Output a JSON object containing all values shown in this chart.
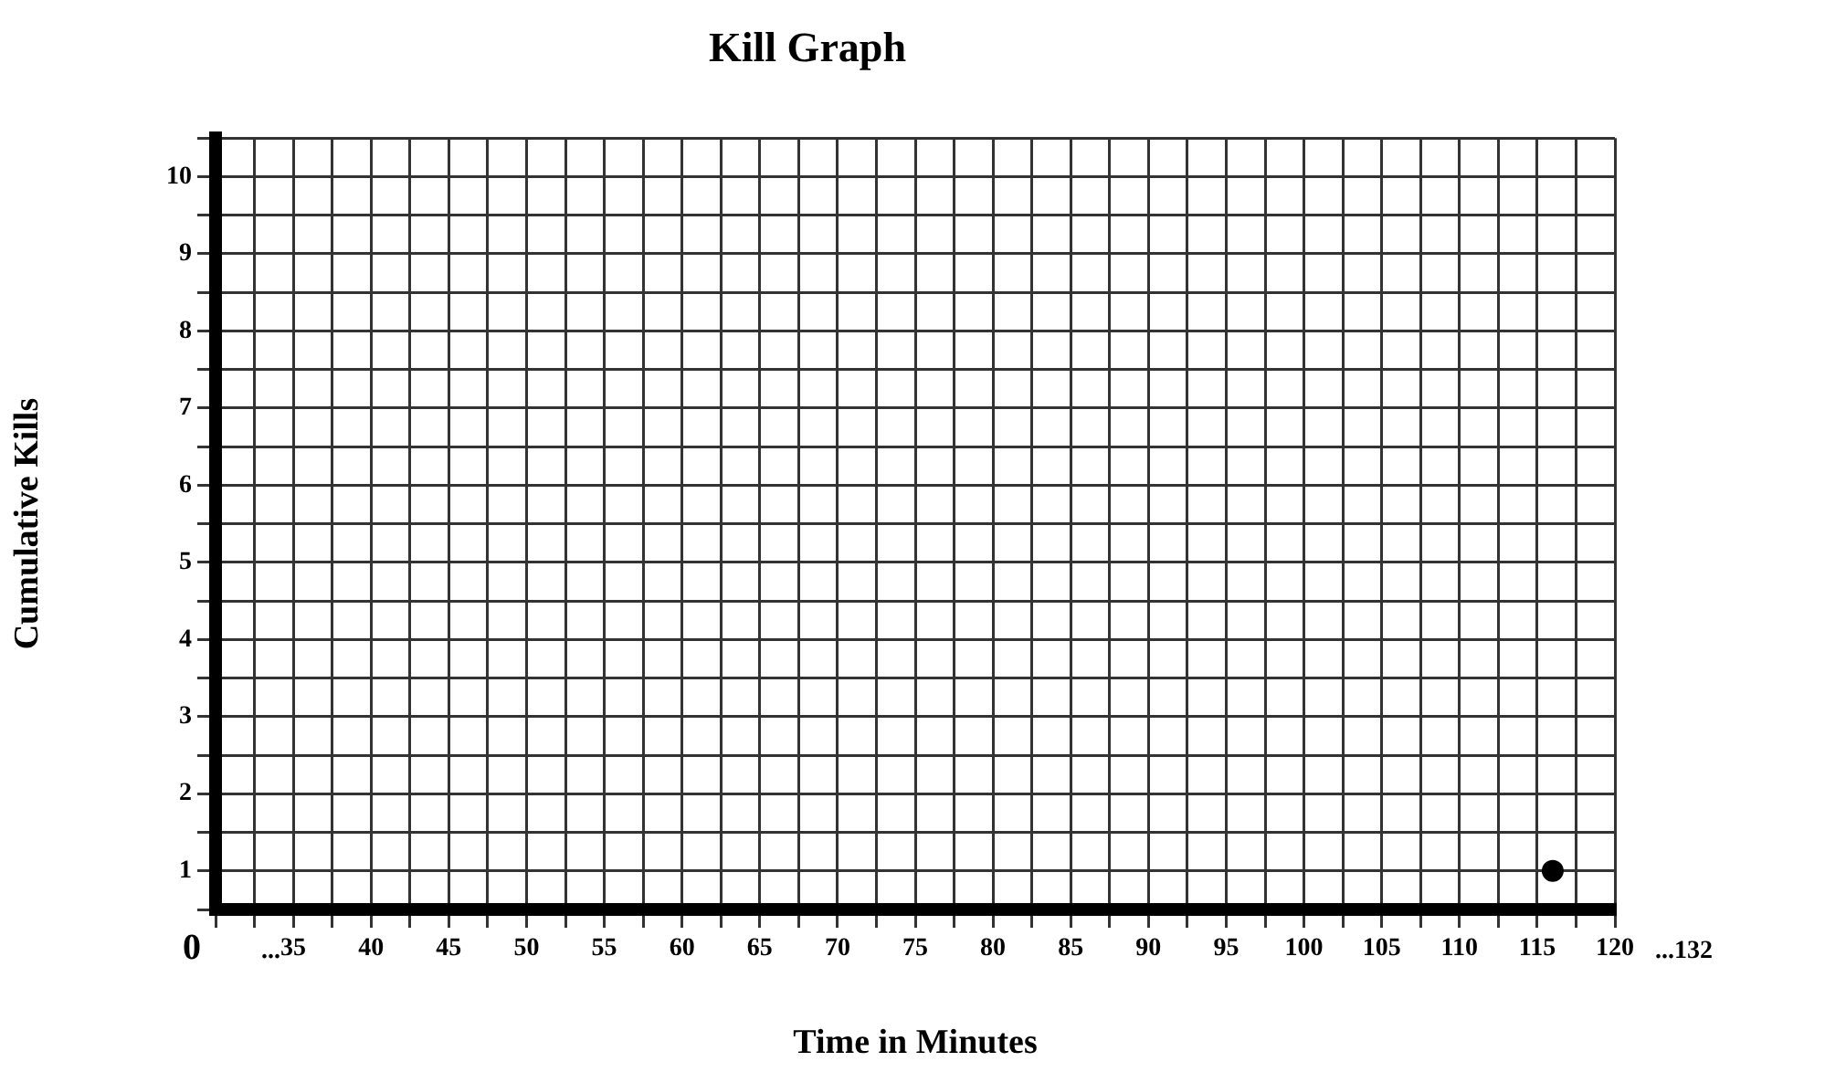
{
  "chart_data": {
    "type": "scatter",
    "title": "Kill Graph",
    "xlabel": "Time in Minutes",
    "ylabel": "Cumulative Kills",
    "x": [
      116
    ],
    "values": [
      1
    ],
    "color": "#000000",
    "marker": "circle",
    "xlim": [
      30,
      120
    ],
    "xticks": [
      {
        "value": 30,
        "label": null
      },
      {
        "value": 32.5,
        "label": null
      },
      35,
      {
        "value": 37.5,
        "label": null
      },
      40,
      {
        "value": 42.5,
        "label": null
      },
      45,
      {
        "value": 47.5,
        "label": null
      },
      50,
      {
        "value": 52.5,
        "label": null
      },
      55,
      {
        "value": 57.5,
        "label": null
      },
      60,
      {
        "value": 62.5,
        "label": null
      },
      65,
      {
        "value": 67.5,
        "label": null
      },
      70,
      {
        "value": 72.5,
        "label": null
      },
      75,
      {
        "value": 77.5,
        "label": null
      },
      80,
      {
        "value": 82.5,
        "label": null
      },
      85,
      {
        "value": 87.5,
        "label": null
      },
      90,
      {
        "value": 92.5,
        "label": null
      },
      95,
      {
        "value": 97.5,
        "label": null
      },
      100,
      {
        "value": 102.5,
        "label": null
      },
      105,
      {
        "value": 107.5,
        "label": null
      },
      110,
      {
        "value": 112.5,
        "label": null
      },
      115,
      {
        "value": 117.5,
        "label": null
      },
      120
    ],
    "ylim": [
      0.5,
      10.5
    ],
    "yticks": [
      {
        "value": 0.5,
        "label": null
      },
      1,
      {
        "value": 1.5,
        "label": null
      },
      2,
      {
        "value": 2.5,
        "label": null
      },
      3,
      {
        "value": 3.5,
        "label": null
      },
      4,
      {
        "value": 4.5,
        "label": null
      },
      5,
      {
        "value": 5.5,
        "label": null
      },
      6,
      {
        "value": 6.5,
        "label": null
      },
      7,
      {
        "value": 7.5,
        "label": null
      },
      8,
      {
        "value": 8.5,
        "label": null
      },
      9,
      {
        "value": 9.5,
        "label": null
      },
      10,
      {
        "value": 10.5,
        "label": null
      }
    ],
    "grid": true,
    "annotations": [
      "0",
      "...",
      "...132"
    ]
  }
}
